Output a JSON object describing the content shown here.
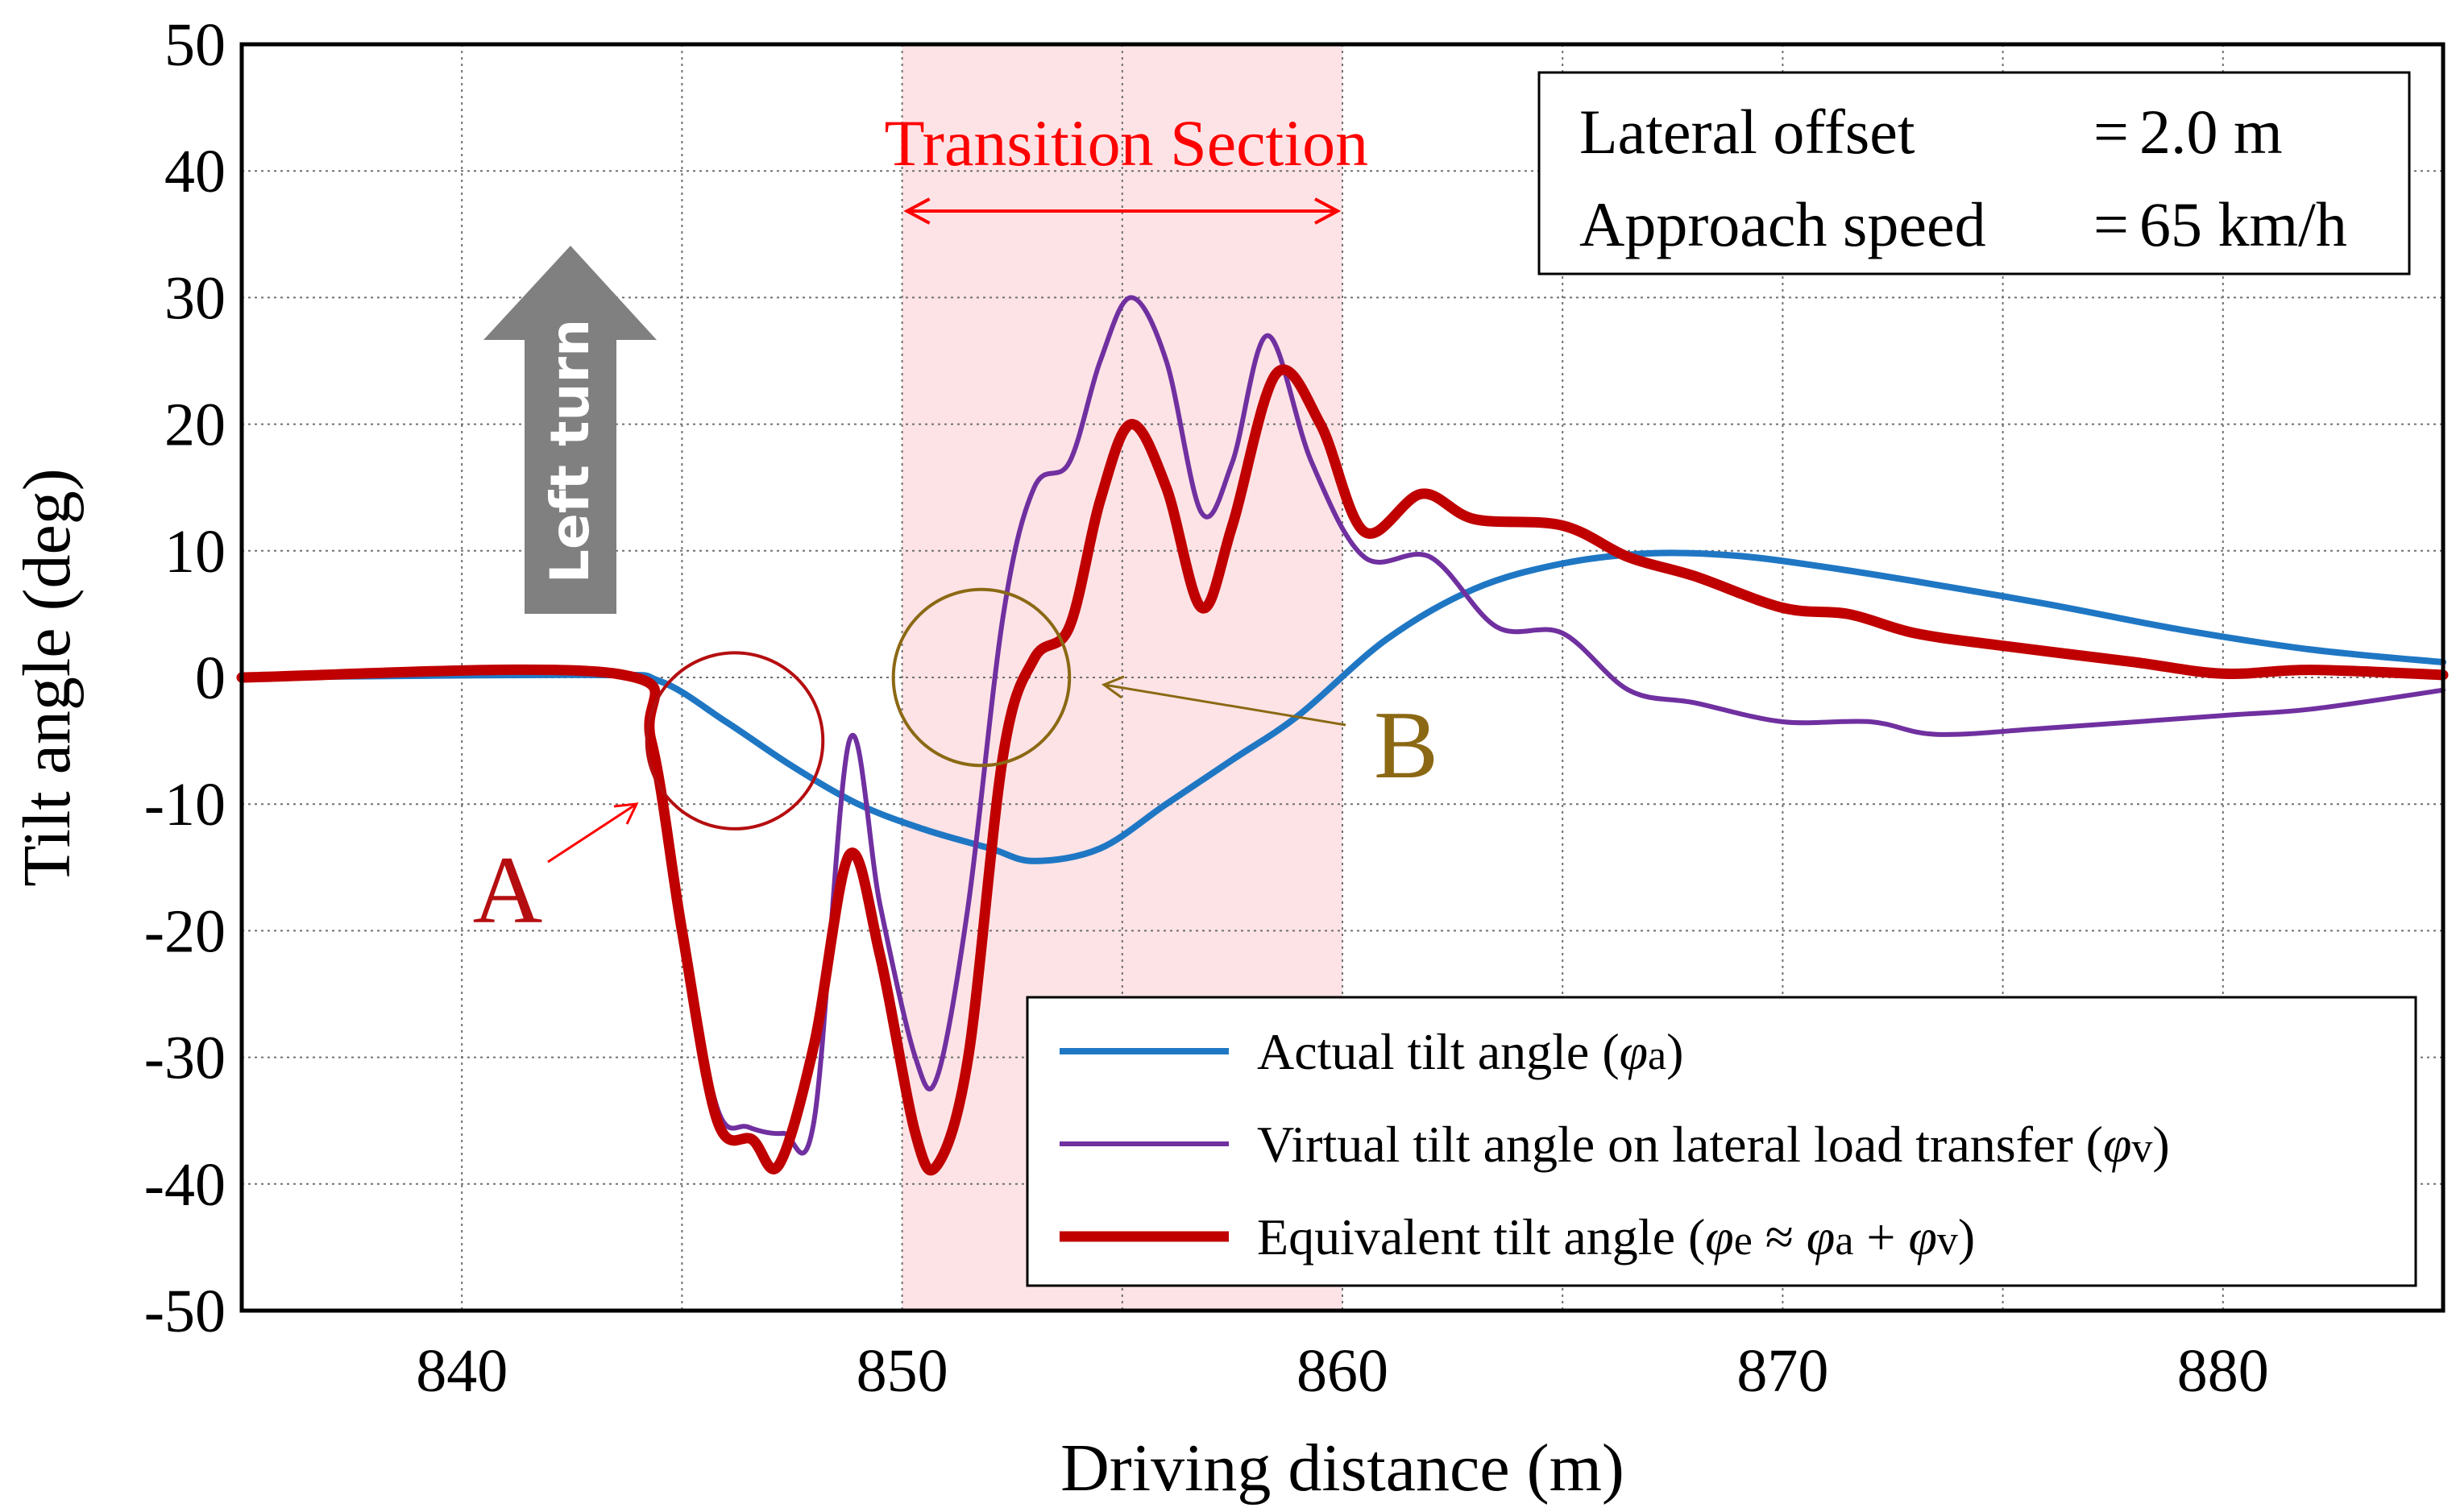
{
  "chart_data": {
    "type": "line",
    "xlabel": "Driving distance (m)",
    "ylabel": "Tilt angle (deg)",
    "xlim": [
      835,
      885
    ],
    "ylim": [
      -50,
      50
    ],
    "xticks": [
      840,
      850,
      860,
      870,
      880
    ],
    "yticks": [
      50,
      40,
      30,
      20,
      10,
      0,
      -10,
      -20,
      -30,
      -40,
      -50
    ],
    "grid": true,
    "shaded_region": {
      "label": "Transition Section",
      "x": [
        850,
        860
      ],
      "color": "#fde3e6"
    },
    "info_box": {
      "line1_label": "Lateral offset",
      "line1_sep": "=",
      "line1_value": "2.0 m",
      "line2_label": "Approach speed",
      "line2_sep": "=",
      "line2_value": "65 km/h"
    },
    "arrow_label": "Left turn",
    "annotations": [
      {
        "label": "A",
        "color": "#b50e10",
        "circle_center": [
          846.2,
          -5
        ],
        "circle_radius_units": 2.0
      },
      {
        "label": "B",
        "color": "#8b6914",
        "circle_center": [
          851.8,
          0
        ],
        "circle_radius_units": 2.0
      }
    ],
    "legend_position": "bottom-right",
    "series": [
      {
        "name": "Actual tilt angle",
        "symbol": "φ",
        "subscript": "a",
        "color": "#1f77c4",
        "width": 8,
        "x": [
          835,
          843,
          844.5,
          846,
          847.5,
          849,
          850.5,
          852,
          853,
          854.5,
          856,
          857.5,
          859,
          861,
          863,
          865,
          867,
          869,
          871,
          873,
          876,
          879,
          882,
          885
        ],
        "y": [
          0,
          0.2,
          -0.3,
          -3.5,
          -7,
          -10,
          -12,
          -13.5,
          -14.5,
          -13.5,
          -10,
          -6.5,
          -3,
          3,
          7,
          9,
          9.8,
          9.6,
          8.7,
          7.6,
          5.8,
          3.8,
          2.2,
          1.2
        ]
      },
      {
        "name": "Virtual tilt angle on lateral load transfer",
        "symbol": "φ",
        "subscript": "v",
        "color": "#7030a0",
        "width": 6,
        "x": [
          835,
          843.5,
          844.3,
          845,
          845.8,
          846.5,
          847.3,
          848,
          848.8,
          849.5,
          850.3,
          850.8,
          851.5,
          852.3,
          853,
          853.8,
          854.5,
          855.2,
          856,
          856.8,
          857.5,
          858.3,
          859.3,
          860.5,
          862,
          863.5,
          865,
          866.5,
          868,
          870,
          872,
          873.5,
          876,
          880,
          882,
          885
        ],
        "y": [
          0,
          0.3,
          -5,
          -20,
          -34,
          -35.5,
          -36,
          -35,
          -5,
          -18,
          -30,
          -31.5,
          -18,
          5,
          15,
          17,
          25,
          30,
          25,
          13,
          17,
          27,
          17,
          9.5,
          9.5,
          4,
          3.5,
          -1,
          -2,
          -3.5,
          -3.5,
          -4.5,
          -4,
          -3,
          -2.5,
          -1
        ]
      },
      {
        "name": "Equivalent tilt angle",
        "symbol": "φ",
        "subscript": "e",
        "legend_suffix": [
          "≈",
          "φ",
          "a",
          "+",
          "φ",
          "v"
        ],
        "color": "#c00000",
        "width": 13,
        "x": [
          835,
          843.5,
          844.3,
          845,
          845.8,
          846.6,
          847.2,
          848,
          848.8,
          849.5,
          850.3,
          850.8,
          851.5,
          852.3,
          853,
          853.8,
          854.5,
          855.2,
          856,
          856.8,
          857.5,
          858.5,
          859.5,
          860.5,
          861.8,
          863,
          865,
          866.5,
          868,
          870,
          871.5,
          873,
          875,
          878,
          880,
          882,
          885
        ],
        "y": [
          0,
          0.3,
          -5,
          -20,
          -35,
          -36.5,
          -38.5,
          -29,
          -14,
          -22,
          -36,
          -38.5,
          -30,
          -6,
          1.5,
          4,
          14,
          20,
          15,
          5.5,
          12,
          24,
          20,
          11.5,
          14.5,
          12.5,
          12,
          9.5,
          8,
          5.5,
          5,
          3.5,
          2.5,
          1.2,
          0.3,
          0.6,
          0.2
        ]
      }
    ]
  }
}
